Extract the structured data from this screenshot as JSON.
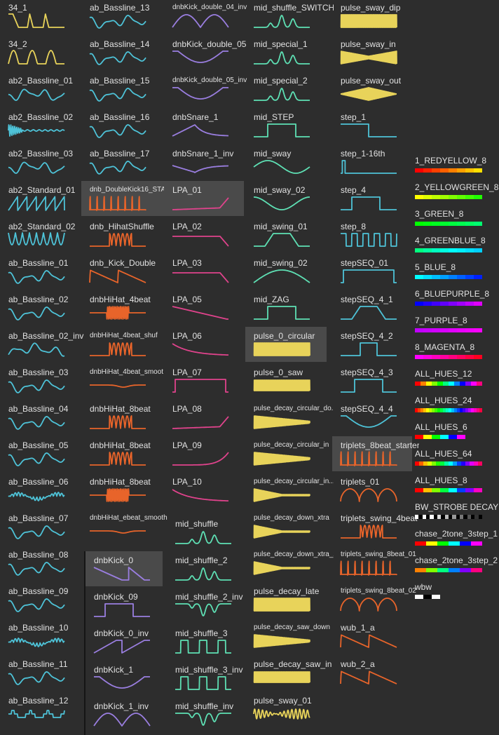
{
  "colors": {
    "bg": "#2d2d2d",
    "selected": "#4a4a4a",
    "cyan": "#4ec3d8",
    "yellow": "#e8d35a",
    "purple": "#9a7ee0",
    "orange": "#e8642a",
    "pink": "#e0438c",
    "teal": "#5ee0b4"
  },
  "library": {
    "col1": [
      {
        "label": "34_1",
        "color": "yellow",
        "wave": "pulses3"
      },
      {
        "label": "34_2",
        "color": "yellow",
        "wave": "bumps3"
      },
      {
        "label": "ab2_Bassline_01",
        "color": "cyan",
        "wave": "wobble"
      },
      {
        "label": "ab2_Bassline_02",
        "color": "cyan",
        "wave": "burst"
      },
      {
        "label": "ab2_Bassline_03",
        "color": "cyan",
        "wave": "wobble"
      },
      {
        "label": "ab2_Standard_01",
        "color": "cyan",
        "wave": "saw"
      },
      {
        "label": "ab2_Standard_02",
        "color": "cyan",
        "wave": "scallop"
      },
      {
        "label": "ab_Bassline_01",
        "color": "cyan",
        "wave": "wobble"
      },
      {
        "label": "ab_Bassline_02",
        "color": "cyan",
        "wave": "wobble"
      },
      {
        "label": "ab_Bassline_02_inv",
        "color": "cyan",
        "wave": "wobble"
      },
      {
        "label": "ab_Bassline_03",
        "color": "cyan",
        "wave": "wobble"
      },
      {
        "label": "ab_Bassline_04",
        "color": "cyan",
        "wave": "wobble"
      },
      {
        "label": "ab_Bassline_05",
        "color": "cyan",
        "wave": "wobble"
      },
      {
        "label": "ab_Bassline_06",
        "color": "cyan",
        "wave": "noise"
      },
      {
        "label": "ab_Bassline_07",
        "color": "cyan",
        "wave": "wobble"
      },
      {
        "label": "ab_Bassline_08",
        "color": "cyan",
        "wave": "wobble"
      },
      {
        "label": "ab_Bassline_09",
        "color": "cyan",
        "wave": "wobble"
      },
      {
        "label": "ab_Bassline_10",
        "color": "cyan",
        "wave": "noise"
      },
      {
        "label": "ab_Bassline_11",
        "color": "cyan",
        "wave": "wobble"
      },
      {
        "label": "ab_Bassline_12",
        "color": "cyan",
        "wave": "steps"
      }
    ],
    "col2": [
      {
        "label": "ab_Bassline_13",
        "color": "cyan",
        "wave": "wobble"
      },
      {
        "label": "ab_Bassline_14",
        "color": "cyan",
        "wave": "wobble"
      },
      {
        "label": "ab_Bassline_15",
        "color": "cyan",
        "wave": "wobble"
      },
      {
        "label": "ab_Bassline_16",
        "color": "cyan",
        "wave": "wobble"
      },
      {
        "label": "ab_Bassline_17",
        "color": "cyan",
        "wave": "wobble"
      },
      {
        "label": "dnb_DoubleKick16_STA",
        "color": "orange",
        "wave": "spikes",
        "small": true,
        "selected": true
      },
      {
        "label": "dnb_HihatShuffle",
        "color": "orange",
        "wave": "spikes2"
      },
      {
        "label": "dnb_Kick_Double",
        "color": "orange",
        "wave": "decay2"
      },
      {
        "label": "dnbHiHat_4beat",
        "color": "orange",
        "wave": "buzz"
      },
      {
        "label": "dnbHiHat_4beat_shuf",
        "color": "orange",
        "wave": "spikes2",
        "small": true
      },
      {
        "label": "dnbHiHat_4beat_smoot",
        "color": "orange",
        "wave": "dip",
        "small": true
      },
      {
        "label": "dnbHiHat_8beat",
        "color": "orange",
        "wave": "spikes2"
      },
      {
        "label": "dnbHiHat_8beat",
        "color": "orange",
        "wave": "spikes2"
      },
      {
        "label": "dnbHiHat_8beat",
        "color": "orange",
        "wave": "buzz"
      },
      {
        "label": "dnbHiHat_ebeat_smooth",
        "color": "orange",
        "wave": "dip",
        "small": true
      }
    ],
    "col2b": [
      {
        "label": "dnbKick_0",
        "color": "purple",
        "wave": "ramp",
        "selected": true
      },
      {
        "label": "dnbKick_09",
        "color": "purple",
        "wave": "square1"
      },
      {
        "label": "dnbKick_0_inv",
        "color": "purple",
        "wave": "rampup"
      },
      {
        "label": "dnbKick_1",
        "color": "purple",
        "wave": "bowl"
      },
      {
        "label": "dnbKick_1_inv",
        "color": "purple",
        "wave": "hill2"
      }
    ],
    "col3": [
      {
        "label": "dnbKick_double_04_inv",
        "color": "purple",
        "wave": "hill2",
        "small": true
      },
      {
        "label": "dnbKick_double_05",
        "color": "purple",
        "wave": "bowl"
      },
      {
        "label": "dnbKick_double_05_inv",
        "color": "purple",
        "wave": "bowl",
        "small": true
      },
      {
        "label": "dnbSnare_1",
        "color": "purple",
        "wave": "swoop"
      },
      {
        "label": "dnbSnare_1_inv",
        "color": "purple",
        "wave": "swoopinv"
      },
      {
        "label": "LPA_01",
        "color": "pink",
        "wave": "lowrise",
        "selected": true
      },
      {
        "label": "LPA_02",
        "color": "pink",
        "wave": "lowfall"
      },
      {
        "label": "LPA_03",
        "color": "pink",
        "wave": "lowfall"
      },
      {
        "label": "LPA_05",
        "color": "pink",
        "wave": "diag"
      },
      {
        "label": "LPA_06",
        "color": "pink",
        "wave": "curvedown"
      },
      {
        "label": "LPA_07",
        "color": "pink",
        "wave": "box"
      },
      {
        "label": "LPA_08",
        "color": "pink",
        "wave": "lowrise"
      },
      {
        "label": "LPA_09",
        "color": "pink",
        "wave": "exprise"
      },
      {
        "label": "LPA_10",
        "color": "pink",
        "wave": "curvedown"
      }
    ],
    "col3b": [
      {
        "label": "mid_shuffle",
        "color": "teal",
        "wave": "peaks"
      },
      {
        "label": "mid_shuffle_2",
        "color": "teal",
        "wave": "peaks"
      },
      {
        "label": "mid_shuffle_2_inv",
        "color": "teal",
        "wave": "valleys"
      },
      {
        "label": "mid_shuffle_3",
        "color": "teal",
        "wave": "square3"
      },
      {
        "label": "mid_shuffle_3_inv",
        "color": "teal",
        "wave": "square3"
      },
      {
        "label": "mid_shuffle_inv",
        "color": "teal",
        "wave": "valleys"
      }
    ],
    "col4": [
      {
        "label": "mid_shuffle_SWITCH",
        "color": "teal",
        "wave": "peaks"
      },
      {
        "label": "mid_special_1",
        "color": "teal",
        "wave": "peaks"
      },
      {
        "label": "mid_special_2",
        "color": "teal",
        "wave": "peaks"
      },
      {
        "label": "mid_STEP",
        "color": "teal",
        "wave": "step"
      },
      {
        "label": "mid_sway",
        "color": "teal",
        "wave": "sine"
      },
      {
        "label": "mid_sway_02",
        "color": "teal",
        "wave": "cos"
      },
      {
        "label": "mid_swing_01",
        "color": "teal",
        "wave": "trap"
      },
      {
        "label": "mid_swing_02",
        "color": "teal",
        "wave": "hill"
      },
      {
        "label": "mid_ZAG",
        "color": "teal",
        "wave": "step"
      },
      {
        "label": "pulse_0_circular",
        "color": "yellow",
        "wave": "denseflat",
        "selected": true
      },
      {
        "label": "pulse_0_saw",
        "color": "yellow",
        "wave": "densesaw"
      },
      {
        "label": "pulse_decay_circular_do...",
        "color": "yellow",
        "wave": "densedecay",
        "small": true
      },
      {
        "label": "pulse_decay_circular_in",
        "color": "yellow",
        "wave": "densedecay",
        "small": true
      },
      {
        "label": "pulse_decay_circular_in...",
        "color": "yellow",
        "wave": "decaytri",
        "small": true
      },
      {
        "label": "pulse_decay_down_xtra",
        "color": "yellow",
        "wave": "decaytri",
        "small": true
      },
      {
        "label": "pulse_decay_down_xtra_2",
        "color": "yellow",
        "wave": "decaytri",
        "small": true
      },
      {
        "label": "pulse_decay_late",
        "color": "yellow",
        "wave": "denseflat"
      },
      {
        "label": "pulse_decay_saw_down",
        "color": "yellow",
        "wave": "densedecay",
        "small": true
      },
      {
        "label": "pulse_decay_saw_in",
        "color": "yellow",
        "wave": "densesaw"
      },
      {
        "label": "pulse_sway_01",
        "color": "yellow",
        "wave": "loops"
      }
    ],
    "col5": [
      {
        "label": "pulse_sway_dip",
        "color": "yellow",
        "wave": "denseflat"
      },
      {
        "label": "pulse_sway_in",
        "color": "yellow",
        "wave": "densebow"
      },
      {
        "label": "pulse_sway_out",
        "color": "yellow",
        "wave": "densediamond"
      },
      {
        "label": "step_1",
        "color": "cyan",
        "wave": "stepdown"
      },
      {
        "label": "step_1-16th",
        "color": "cyan",
        "wave": "spikeflat"
      },
      {
        "label": "step_4",
        "color": "cyan",
        "wave": "square1"
      },
      {
        "label": "step_8",
        "color": "cyan",
        "wave": "square4"
      },
      {
        "label": "stepSEQ_01",
        "color": "cyan",
        "wave": "box"
      },
      {
        "label": "stepSEQ_4_1",
        "color": "cyan",
        "wave": "trap"
      },
      {
        "label": "stepSEQ_4_2",
        "color": "cyan",
        "wave": "pulse1"
      },
      {
        "label": "stepSEQ_4_3",
        "color": "cyan",
        "wave": "step"
      },
      {
        "label": "stepSEQ_4_4",
        "color": "cyan",
        "wave": "bowl"
      },
      {
        "label": "triplets_8beat_starter",
        "color": "orange",
        "wave": "spikes",
        "selected": true
      },
      {
        "label": "triplets_01",
        "color": "orange",
        "wave": "arches"
      },
      {
        "label": "triplets_swing_4beat",
        "color": "orange",
        "wave": "spikes2"
      },
      {
        "label": "triplets_swing_8beat_01",
        "color": "orange",
        "wave": "spikes",
        "small": true
      },
      {
        "label": "triplets_swing_8beat_02",
        "color": "orange",
        "wave": "arches",
        "small": true
      },
      {
        "label": "wub_1_a",
        "color": "orange",
        "wave": "decay2"
      },
      {
        "label": "wub_2_a",
        "color": "orange",
        "wave": "decay2"
      }
    ],
    "palettes": [
      {
        "label": "1_REDYELLOW_8",
        "colors": [
          "#ff0000",
          "#ff2000",
          "#ff4000",
          "#ff6000",
          "#ff8000",
          "#ffa000",
          "#ffc000",
          "#ffe000"
        ]
      },
      {
        "label": "2_YELLOWGREEN_8",
        "colors": [
          "#ffff00",
          "#e0ff00",
          "#c0ff00",
          "#a0ff00",
          "#80ff00",
          "#60ff00",
          "#40ff00",
          "#20ff00"
        ]
      },
      {
        "label": "3_GREEN_8",
        "colors": [
          "#00ff00",
          "#00ff10",
          "#00ff20",
          "#00ff30",
          "#00ff40",
          "#00ff50",
          "#00ff60",
          "#00ff70"
        ]
      },
      {
        "label": "4_GREENBLUE_8",
        "colors": [
          "#00ff80",
          "#00ffa0",
          "#00ffc0",
          "#00ffe0",
          "#00ffff",
          "#00f0ff",
          "#00e0ff",
          "#00d0ff"
        ]
      },
      {
        "label": "5_BLUE_8",
        "colors": [
          "#00ffff",
          "#00e0ff",
          "#00c0ff",
          "#00a0ff",
          "#0080ff",
          "#0060ff",
          "#0040ff",
          "#0020ff"
        ]
      },
      {
        "label": "6_BLUEPURPLE_8",
        "colors": [
          "#0000ff",
          "#2000ff",
          "#4000ff",
          "#6000ff",
          "#8000ff",
          "#a000ff",
          "#c000ff",
          "#e000ff"
        ]
      },
      {
        "label": "7_PURPLE_8",
        "colors": [
          "#c000ff",
          "#c800ff",
          "#d000ff",
          "#d800ff",
          "#e000ff",
          "#e800ff",
          "#f000ff",
          "#f800ff"
        ]
      },
      {
        "label": "8_MAGENTA_8",
        "colors": [
          "#ff00ff",
          "#ff00e0",
          "#ff00c0",
          "#ff00a0",
          "#ff0080",
          "#ff0060",
          "#ff0040",
          "#ff0020"
        ]
      },
      {
        "label": "ALL_HUES_12",
        "colors": [
          "#ff0000",
          "#ff8000",
          "#ffff00",
          "#80ff00",
          "#00ff00",
          "#00ff80",
          "#00ffff",
          "#0080ff",
          "#0000ff",
          "#8000ff",
          "#ff00ff",
          "#ff0080"
        ]
      },
      {
        "label": "ALL_HUES_24",
        "colors": [
          "#ff0000",
          "#ff4000",
          "#ff8000",
          "#ffc000",
          "#ffff00",
          "#c0ff00",
          "#80ff00",
          "#40ff00",
          "#00ff00",
          "#00ff40",
          "#00ff80",
          "#00ffc0",
          "#00ffff",
          "#00c0ff",
          "#0080ff",
          "#0040ff",
          "#0000ff",
          "#4000ff",
          "#8000ff",
          "#c000ff",
          "#ff00ff",
          "#ff00c0",
          "#ff0080",
          "#ff0040"
        ]
      },
      {
        "label": "ALL_HUES_6",
        "colors": [
          "#ff0000",
          "#ffff00",
          "#00ff00",
          "#00ffff",
          "#0000ff",
          "#ff00ff"
        ]
      },
      {
        "label": "ALL_HUES_64",
        "colors": [
          "#ff0000",
          "#ff6000",
          "#ffc000",
          "#e0ff00",
          "#80ff00",
          "#20ff00",
          "#00ff40",
          "#00ffa0",
          "#00ffff",
          "#00a0ff",
          "#0040ff",
          "#2000ff",
          "#8000ff",
          "#e000ff",
          "#ff00c0",
          "#ff0060"
        ]
      },
      {
        "label": "ALL_HUES_8",
        "colors": [
          "#ff0000",
          "#ffc000",
          "#80ff00",
          "#00ff40",
          "#00ffff",
          "#0040ff",
          "#8000ff",
          "#ff00c0"
        ]
      },
      {
        "label": "BW_STROBE DECAY",
        "colors": [
          "#ffffff",
          "#000000",
          "#ffffff",
          "#000000",
          "#ffffff",
          "#000000",
          "#dddddd",
          "#000000",
          "#bbbbbb",
          "#000000",
          "#999999",
          "#000000",
          "#777777",
          "#000000",
          "#555555",
          "#000000",
          "#333333",
          "#000000"
        ]
      },
      {
        "label": "chase_2tone_3step_1",
        "colors": [
          "#ff0000",
          "#ff0000",
          "#ffff00",
          "#ffff00",
          "#00ff00",
          "#00ff00",
          "#00ffff",
          "#00ffff",
          "#0000ff",
          "#0000ff",
          "#ff00ff",
          "#ff00ff"
        ]
      },
      {
        "label": "chase_2tone_3step_2",
        "colors": [
          "#ff8000",
          "#ff8000",
          "#80ff00",
          "#80ff00",
          "#00ff80",
          "#00ff80",
          "#0080ff",
          "#0080ff",
          "#8000ff",
          "#8000ff",
          "#ff0080",
          "#ff0080"
        ]
      },
      {
        "label": "wbw",
        "colors": [
          "#ffffff",
          "#000000",
          "#ffffff"
        ]
      }
    ]
  }
}
